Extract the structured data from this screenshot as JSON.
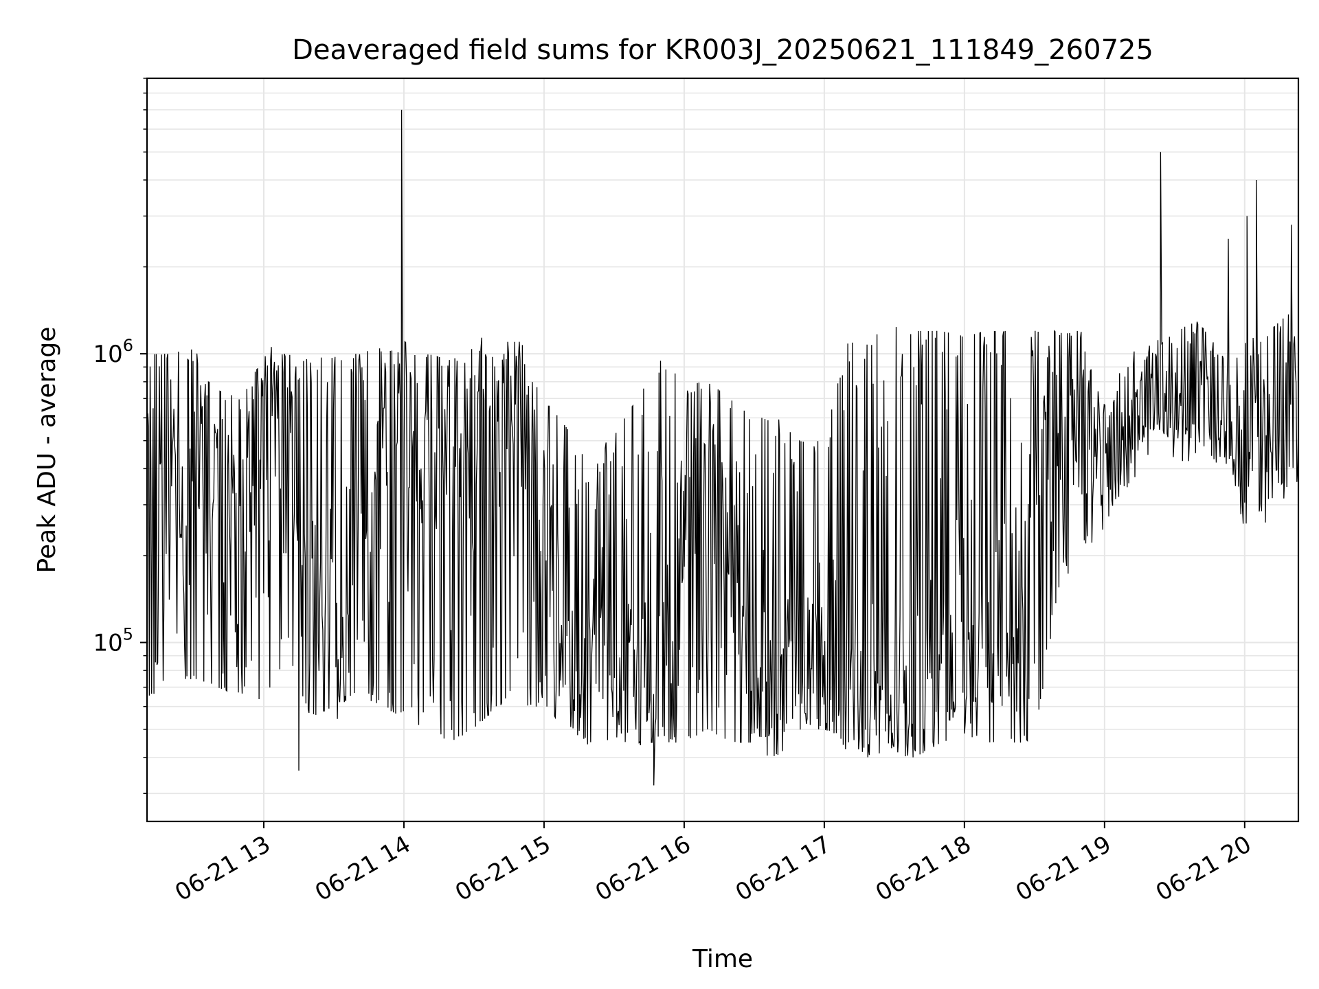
{
  "chart_data": {
    "type": "line",
    "title": "Deaveraged field sums for KR003J_20250621_111849_260725",
    "xlabel": "Time",
    "ylabel": "Peak ADU - average",
    "x_scale": "time",
    "y_scale": "log",
    "xlim": [
      "2025-06-21 12:10",
      "2025-06-21 20:23"
    ],
    "ylim": [
      24000,
      9000000
    ],
    "x_ticks": [
      {
        "value": "2025-06-21 13:00",
        "label": "06-21 13"
      },
      {
        "value": "2025-06-21 14:00",
        "label": "06-21 14"
      },
      {
        "value": "2025-06-21 15:00",
        "label": "06-21 15"
      },
      {
        "value": "2025-06-21 16:00",
        "label": "06-21 16"
      },
      {
        "value": "2025-06-21 17:00",
        "label": "06-21 17"
      },
      {
        "value": "2025-06-21 18:00",
        "label": "06-21 18"
      },
      {
        "value": "2025-06-21 19:00",
        "label": "06-21 19"
      },
      {
        "value": "2025-06-21 20:00",
        "label": "06-21 20"
      }
    ],
    "y_ticks": [
      {
        "value": 100000,
        "base": "10",
        "exp": "5"
      },
      {
        "value": 1000000,
        "base": "10",
        "exp": "6"
      }
    ],
    "grid": true,
    "line_color": "#000000",
    "grid_color": "#e6e6e6",
    "series": [
      {
        "x": [
          "2025-06-21 12:10",
          "2025-06-21 12:20",
          "2025-06-21 12:30",
          "2025-06-21 12:40",
          "2025-06-21 12:50",
          "2025-06-21 13:00",
          "2025-06-21 13:10",
          "2025-06-21 13:20",
          "2025-06-21 13:30",
          "2025-06-21 13:40",
          "2025-06-21 13:50",
          "2025-06-21 14:00",
          "2025-06-21 14:10",
          "2025-06-21 14:20",
          "2025-06-21 14:30",
          "2025-06-21 14:40",
          "2025-06-21 14:50",
          "2025-06-21 15:00",
          "2025-06-21 15:10",
          "2025-06-21 15:20",
          "2025-06-21 15:30",
          "2025-06-21 15:40",
          "2025-06-21 15:50",
          "2025-06-21 16:00",
          "2025-06-21 16:10",
          "2025-06-21 16:20",
          "2025-06-21 16:30",
          "2025-06-21 16:40",
          "2025-06-21 16:50",
          "2025-06-21 17:00",
          "2025-06-21 17:10",
          "2025-06-21 17:20",
          "2025-06-21 17:30",
          "2025-06-21 17:40",
          "2025-06-21 17:50",
          "2025-06-21 18:00",
          "2025-06-21 18:10",
          "2025-06-21 18:20",
          "2025-06-21 18:30",
          "2025-06-21 18:40",
          "2025-06-21 18:50",
          "2025-06-21 19:00",
          "2025-06-21 19:10",
          "2025-06-21 19:20",
          "2025-06-21 19:30",
          "2025-06-21 19:40",
          "2025-06-21 19:50",
          "2025-06-21 20:00",
          "2025-06-21 20:10",
          "2025-06-21 20:20"
        ],
        "y_high": [
          1000000,
          1000000,
          1050000,
          750000,
          700000,
          980000,
          1000000,
          950000,
          1000000,
          1000000,
          1050000,
          1000000,
          1000000,
          950000,
          1050000,
          1000000,
          1000000,
          700000,
          550000,
          400000,
          550000,
          700000,
          950000,
          800000,
          800000,
          700000,
          600000,
          600000,
          500000,
          500000,
          1100000,
          1200000,
          1250000,
          1200000,
          1200000,
          1150000,
          1200000,
          1200000,
          1200000,
          1200000,
          1200000,
          600000,
          900000,
          1000000,
          1200000,
          1300000,
          1000000,
          1100000,
          1200000,
          1400000
        ],
        "y_low": [
          65000,
          70000,
          75000,
          70000,
          65000,
          60000,
          90000,
          55000,
          60000,
          65000,
          60000,
          55000,
          50000,
          45000,
          50000,
          60000,
          60000,
          60000,
          50000,
          45000,
          50000,
          45000,
          45000,
          45000,
          50000,
          45000,
          45000,
          48000,
          50000,
          50000,
          45000,
          40000,
          40000,
          40000,
          45000,
          48000,
          45000,
          45000,
          45000,
          150000,
          200000,
          250000,
          400000,
          550000,
          500000,
          500000,
          400000,
          250000,
          300000,
          400000
        ],
        "y_base": [
          400000,
          300000,
          550000,
          400000,
          300000,
          650000,
          600000,
          110000,
          95000,
          95000,
          600000,
          700000,
          350000,
          400000,
          700000,
          800000,
          800000,
          300000,
          80000,
          75000,
          75000,
          75000,
          100000,
          300000,
          400000,
          200000,
          90000,
          60000,
          75000,
          90000,
          70000,
          70000,
          70000,
          70000,
          80000,
          70000,
          80000,
          85000,
          400000,
          500000,
          500000,
          500000,
          600000,
          700000,
          650000,
          800000,
          700000,
          500000,
          450000,
          600000
        ],
        "spikes": [
          {
            "x": "2025-06-21 13:59",
            "y": 7000000
          },
          {
            "x": "2025-06-21 19:24",
            "y": 5000000
          },
          {
            "x": "2025-06-21 20:05",
            "y": 4000000
          },
          {
            "x": "2025-06-21 20:01",
            "y": 3000000
          },
          {
            "x": "2025-06-21 20:20",
            "y": 2800000
          },
          {
            "x": "2025-06-21 19:53",
            "y": 2500000
          },
          {
            "x": "2025-06-21 15:47",
            "y": 32000
          },
          {
            "x": "2025-06-21 13:15",
            "y": 36000
          }
        ]
      }
    ]
  }
}
